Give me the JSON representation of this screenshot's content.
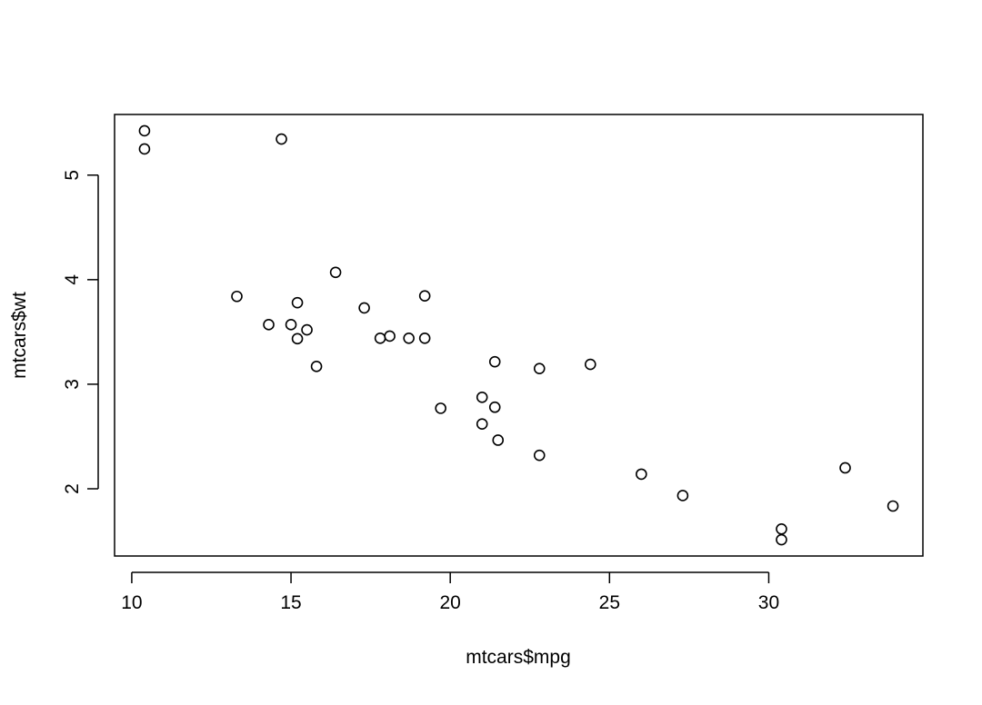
{
  "chart_data": {
    "type": "scatter",
    "x_label": "mtcars$mpg",
    "y_label": "mtcars$wt",
    "x": [
      21.0,
      21.0,
      22.8,
      21.4,
      18.7,
      18.1,
      14.3,
      24.4,
      22.8,
      19.2,
      17.8,
      16.4,
      17.3,
      15.2,
      10.4,
      10.4,
      14.7,
      32.4,
      30.4,
      33.9,
      21.5,
      15.5,
      15.2,
      13.3,
      19.2,
      27.3,
      26.0,
      30.4,
      15.8,
      19.7,
      15.0,
      21.4
    ],
    "values": [
      2.62,
      2.875,
      2.32,
      3.215,
      3.44,
      3.46,
      3.57,
      3.19,
      3.15,
      3.44,
      3.44,
      4.07,
      3.73,
      3.78,
      5.25,
      5.424,
      5.345,
      2.2,
      1.615,
      1.835,
      2.465,
      3.52,
      3.435,
      3.84,
      3.845,
      1.935,
      2.14,
      1.513,
      3.17,
      2.77,
      3.57,
      2.78
    ],
    "color": "#000000",
    "xlim": [
      9.46,
      34.84
    ],
    "ylim": [
      1.357,
      5.58
    ],
    "xticks": [
      10,
      15,
      20,
      25,
      30
    ],
    "yticks": [
      2,
      3,
      4,
      5
    ],
    "grid": false
  }
}
